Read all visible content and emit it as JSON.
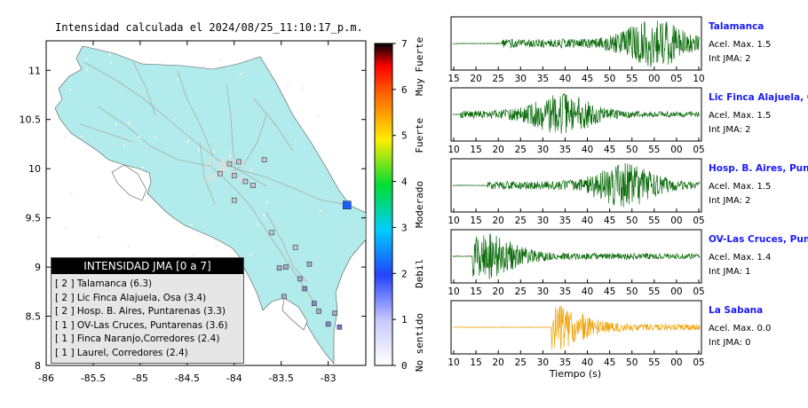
{
  "map": {
    "title": "Intensidad calculada el 2024/08/25_11:10:17_p.m.",
    "x_ticks": [
      "-86",
      "-85.5",
      "-85",
      "-84.5",
      "-84",
      "-83.5",
      "-83"
    ],
    "y_ticks": [
      "11",
      "10.5",
      "10",
      "9.5",
      "9",
      "8.5",
      "8"
    ],
    "land_color": "#b2ebeb",
    "station_markers": [
      {
        "lon": -84.05,
        "lat": 10.05,
        "color": "#c8c8d0"
      },
      {
        "lon": -83.95,
        "lat": 10.07,
        "color": "#c8c8d0"
      },
      {
        "lon": -84.0,
        "lat": 9.93,
        "color": "#c8c8d0"
      },
      {
        "lon": -83.88,
        "lat": 9.87,
        "color": "#c8c8d0"
      },
      {
        "lon": -83.68,
        "lat": 10.09,
        "color": "#c8c8d0"
      },
      {
        "lon": -84.0,
        "lat": 9.68,
        "color": "#c8c8d0"
      },
      {
        "lon": -84.15,
        "lat": 9.95,
        "color": "#c8c8d0"
      },
      {
        "lon": -83.8,
        "lat": 9.83,
        "color": "#c8c8d0"
      },
      {
        "lon": -83.35,
        "lat": 9.2,
        "color": "#c8c8d0"
      },
      {
        "lon": -83.45,
        "lat": 9.0,
        "color": "#aaaacc"
      },
      {
        "lon": -83.52,
        "lat": 8.99,
        "color": "#aaaacc"
      },
      {
        "lon": -83.3,
        "lat": 8.88,
        "color": "#aaaacc"
      },
      {
        "lon": -83.2,
        "lat": 9.03,
        "color": "#aaaacc"
      },
      {
        "lon": -83.25,
        "lat": 8.78,
        "color": "#8888cc"
      },
      {
        "lon": -83.15,
        "lat": 8.63,
        "color": "#8888cc"
      },
      {
        "lon": -83.1,
        "lat": 8.55,
        "color": "#aaaacc"
      },
      {
        "lon": -82.93,
        "lat": 8.53,
        "color": "#aaaacc"
      },
      {
        "lon": -83.47,
        "lat": 8.7,
        "color": "#aaaacc"
      },
      {
        "lon": -83.0,
        "lat": 8.42,
        "color": "#8888cc"
      },
      {
        "lon": -83.6,
        "lat": 9.35,
        "color": "#c8c8d0"
      },
      {
        "lon": -82.88,
        "lat": 8.39,
        "color": "#7777cc"
      },
      {
        "lon": -82.8,
        "lat": 9.63,
        "color": "#1a5fff"
      }
    ],
    "legend": {
      "title": "INTENSIDAD JMA [0 a 7]",
      "items": [
        "[ 2 ]  Talamanca (6.3)",
        "[ 2 ]  Lic Finca Alajuela, Osa (3.4)",
        "[ 2 ]  Hosp. B. Aires, Puntarenas (3.3)",
        "[ 1 ]  OV-Las Cruces, Puntarenas (3.6)",
        "[ 1 ]  Finca Naranjo,Corredores (2.4)",
        "[ 1 ]  Laurel, Corredores (2.4)"
      ]
    }
  },
  "colorbar": {
    "tick_labels": [
      "0",
      "1",
      "2",
      "3",
      "4",
      "5",
      "6",
      "7"
    ],
    "category_labels": [
      "No sentido",
      "Debil",
      "Moderado",
      "Fuerte",
      "Muy Fuerte"
    ]
  },
  "waveforms": {
    "xlabel": "Tiempo (s)",
    "stations": [
      {
        "name": "Talamanca",
        "accel": "Acel. Max. 1.5",
        "jma": "Int JMA: 2",
        "color": "#0a6a0a",
        "ticks": [
          "15",
          "20",
          "25",
          "30",
          "35",
          "40",
          "45",
          "50",
          "55",
          "00",
          "05",
          "10"
        ],
        "onset": 0.2,
        "peak": 0.82,
        "amp": 1.0
      },
      {
        "name": "Lic Finca Alajuela, Osa",
        "accel": "Acel. Max. 1.5",
        "jma": "Int JMA: 2",
        "color": "#0a6a0a",
        "ticks": [
          "10",
          "15",
          "20",
          "25",
          "30",
          "35",
          "40",
          "45",
          "50",
          "55",
          "00",
          "05"
        ],
        "onset": 0.03,
        "peak": 0.45,
        "amp": 0.85
      },
      {
        "name": "Hosp. B. Aires, Puntare",
        "accel": "Acel. Max. 1.5",
        "jma": "Int JMA: 2",
        "color": "#0a6a0a",
        "ticks": [
          "10",
          "15",
          "20",
          "25",
          "30",
          "35",
          "40",
          "45",
          "50",
          "55",
          "00",
          "05"
        ],
        "onset": 0.14,
        "peak": 0.7,
        "amp": 0.9
      },
      {
        "name": "OV-Las Cruces, Puntar",
        "accel": "Acel. Max. 1.4",
        "jma": "Int JMA: 1",
        "color": "#0a6a0a",
        "ticks": [
          "10",
          "15",
          "20",
          "25",
          "30",
          "35",
          "40",
          "45",
          "50",
          "55",
          "00",
          "05"
        ],
        "onset": 0.08,
        "peak": 0.13,
        "amp": 1.0
      },
      {
        "name": "La Sabana",
        "accel": "Acel. Max. 0.0",
        "jma": "Int JMA: 0",
        "color": "#f0a000",
        "ticks": [
          "10",
          "15",
          "20",
          "25",
          "30",
          "35",
          "40",
          "45",
          "50",
          "55",
          "00",
          "05"
        ],
        "onset": 0.4,
        "peak": 0.42,
        "amp": 0.95
      }
    ]
  }
}
